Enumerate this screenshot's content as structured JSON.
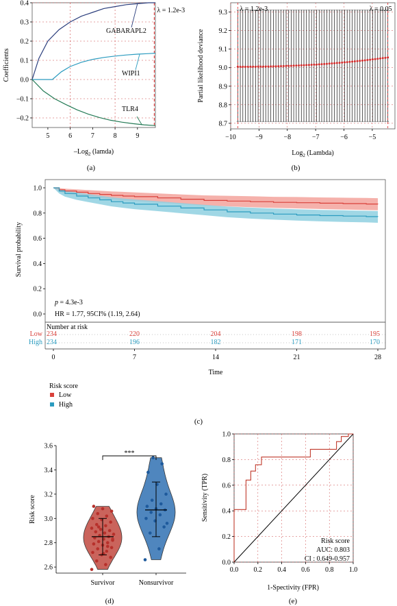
{
  "panels": {
    "a": "(a)",
    "b": "(b)",
    "c": "(c)",
    "d": "(d)",
    "e": "(e)"
  },
  "chart_data": [
    {
      "id": "a",
      "type": "line",
      "xlabel_main": "–Log",
      "xlabel_sub": "2",
      "xlabel_tail": " (lamda)",
      "ylabel": "Coefficients",
      "xlim": [
        4.3,
        9.8
      ],
      "ylim": [
        -0.25,
        0.4
      ],
      "xticks": [
        5,
        6,
        7,
        8,
        9
      ],
      "yticks": [
        -0.2,
        -0.1,
        0,
        0.1,
        0.2,
        0.3,
        0.4
      ],
      "ytick_labels": [
        "–0.2",
        "–0.1",
        "0.0",
        "0.1",
        "0.2",
        "0.3",
        "0.4"
      ],
      "lambda_line_x": 9.75,
      "lambda_label": "λ = 1.2e-3",
      "series": [
        {
          "name": "GABARAPL2",
          "color": "#2a3d7c",
          "x": [
            4.3,
            4.6,
            5.0,
            5.5,
            6.0,
            6.5,
            7.0,
            7.5,
            8.0,
            8.5,
            9.0,
            9.5,
            9.8
          ],
          "y": [
            0.0,
            0.11,
            0.2,
            0.26,
            0.3,
            0.33,
            0.35,
            0.37,
            0.38,
            0.39,
            0.395,
            0.4,
            0.4
          ]
        },
        {
          "name": "WIPI1",
          "color": "#2a9bbf",
          "x": [
            4.3,
            5.2,
            5.6,
            6.0,
            6.5,
            7.0,
            7.5,
            8.0,
            8.5,
            9.0,
            9.5,
            9.8
          ],
          "y": [
            0.0,
            0.0,
            0.04,
            0.068,
            0.09,
            0.105,
            0.115,
            0.122,
            0.128,
            0.132,
            0.135,
            0.137
          ]
        },
        {
          "name": "TLR4",
          "color": "#237a55",
          "x": [
            4.3,
            4.8,
            5.3,
            5.8,
            6.3,
            6.8,
            7.3,
            7.8,
            8.3,
            8.8,
            9.3,
            9.8
          ],
          "y": [
            0.0,
            -0.06,
            -0.1,
            -0.13,
            -0.158,
            -0.18,
            -0.198,
            -0.212,
            -0.222,
            -0.23,
            -0.236,
            -0.24
          ]
        }
      ]
    },
    {
      "id": "b",
      "type": "scatter",
      "xlabel_main": "Log",
      "xlabel_sub": "2",
      "xlabel_tail": " (Lambda)",
      "ylabel": "Partial likelihood deviance",
      "xlim": [
        -10,
        -4.2
      ],
      "ylim": [
        8.67,
        9.35
      ],
      "xticks": [
        -10,
        -9,
        -8,
        -7,
        -6,
        -5
      ],
      "xtick_labels": [
        "−10",
        "−9",
        "−8",
        "−7",
        "−6",
        "−5"
      ],
      "yticks": [
        8.7,
        8.8,
        8.9,
        9.0,
        9.1,
        9.2,
        9.3
      ],
      "ytick_labels": [
        "8.7",
        "8.8",
        "8.9",
        "9.0",
        "9.1",
        "9.2",
        "9.3"
      ],
      "lambda_min_x": -9.75,
      "lambda_1se_x": -4.45,
      "lambda_min_label": "λ = 1.2e-3",
      "lambda_1se_label": "λ = 0.05",
      "point_color": "#d32a2a",
      "x_start": -9.75,
      "x_end": -4.45,
      "n_points": 60,
      "y_start": 9.005,
      "y_end": 9.055,
      "err_low": 8.71,
      "err_high": 9.31
    },
    {
      "id": "c",
      "type": "line",
      "xlabel": "Time",
      "ylabel": "Survival probability",
      "xlim": [
        0,
        28
      ],
      "ylim": [
        0,
        1.0
      ],
      "xticks": [
        0,
        7,
        14,
        21,
        28
      ],
      "yticks": [
        0.0,
        0.2,
        0.4,
        0.6,
        0.8,
        1.0
      ],
      "ytick_labels": [
        "0.0",
        "0.2",
        "0.4",
        "0.6",
        "0.8",
        "1.0"
      ],
      "p_label": "p",
      "p_value": " = 4.3e-3",
      "hr_text": "HR = 1.77, 95CI% (1.19, 2.64)",
      "risk_table_title": "Number at risk",
      "legend_title": "Risk score",
      "series": [
        {
          "name": "Low",
          "color": "#d9413a",
          "band": "#f3a39c",
          "x": [
            0,
            0.5,
            1,
            2,
            3,
            4,
            5,
            6,
            7,
            9,
            11,
            13,
            15,
            17,
            19,
            21,
            23,
            25,
            27,
            28
          ],
          "y": [
            1.0,
            0.985,
            0.975,
            0.965,
            0.955,
            0.948,
            0.94,
            0.935,
            0.93,
            0.92,
            0.91,
            0.9,
            0.895,
            0.89,
            0.885,
            0.882,
            0.878,
            0.875,
            0.872,
            0.87
          ],
          "lo": [
            1.0,
            0.97,
            0.955,
            0.94,
            0.927,
            0.918,
            0.908,
            0.9,
            0.895,
            0.883,
            0.872,
            0.86,
            0.853,
            0.847,
            0.841,
            0.837,
            0.832,
            0.828,
            0.824,
            0.822
          ],
          "hi": [
            1.0,
            0.998,
            0.993,
            0.988,
            0.982,
            0.977,
            0.971,
            0.968,
            0.964,
            0.956,
            0.948,
            0.94,
            0.937,
            0.933,
            0.929,
            0.927,
            0.924,
            0.922,
            0.92,
            0.918
          ],
          "risk": [
            234,
            220,
            204,
            198,
            195
          ]
        },
        {
          "name": "High",
          "color": "#2a9bbf",
          "band": "#8fd0e0",
          "x": [
            0,
            0.5,
            1,
            2,
            3,
            4,
            5,
            6,
            7,
            9,
            11,
            13,
            15,
            17,
            19,
            21,
            23,
            25,
            27,
            28
          ],
          "y": [
            1.0,
            0.975,
            0.955,
            0.935,
            0.92,
            0.905,
            0.89,
            0.88,
            0.87,
            0.855,
            0.84,
            0.825,
            0.81,
            0.8,
            0.792,
            0.785,
            0.78,
            0.776,
            0.772,
            0.77
          ],
          "lo": [
            1.0,
            0.955,
            0.93,
            0.905,
            0.887,
            0.87,
            0.853,
            0.842,
            0.831,
            0.815,
            0.799,
            0.783,
            0.767,
            0.756,
            0.748,
            0.74,
            0.734,
            0.73,
            0.726,
            0.723
          ],
          "hi": [
            1.0,
            0.99,
            0.978,
            0.963,
            0.951,
            0.938,
            0.925,
            0.916,
            0.908,
            0.894,
            0.88,
            0.866,
            0.852,
            0.843,
            0.836,
            0.83,
            0.825,
            0.822,
            0.818,
            0.816
          ],
          "risk": [
            234,
            196,
            182,
            171,
            170
          ]
        }
      ]
    },
    {
      "id": "d",
      "type": "scatter",
      "ylabel": "Risk score",
      "ylim": [
        2.55,
        3.6
      ],
      "yticks": [
        2.6,
        2.8,
        3.0,
        3.2,
        3.4,
        3.6
      ],
      "ytick_labels": [
        "2.6",
        "2.8",
        "3.0",
        "3.2",
        "3.4",
        "3.6"
      ],
      "categories": [
        "Survivor",
        "Nonsurvivor"
      ],
      "significance": "***",
      "groups": [
        {
          "name": "Survivor",
          "fill": "#c5544b",
          "point": "#b7302b",
          "mean": 2.85,
          "sd_low": 2.7,
          "sd_high": 3.0,
          "points": [
            2.58,
            2.62,
            2.65,
            2.68,
            2.7,
            2.72,
            2.73,
            2.75,
            2.76,
            2.78,
            2.79,
            2.8,
            2.81,
            2.82,
            2.83,
            2.84,
            2.85,
            2.86,
            2.87,
            2.88,
            2.89,
            2.9,
            2.91,
            2.92,
            2.94,
            2.95,
            2.97,
            2.99,
            3.0,
            3.02,
            3.04,
            3.06,
            3.08,
            3.1,
            2.77,
            2.93,
            2.83,
            2.71
          ]
        },
        {
          "name": "Nonsurvivor",
          "fill": "#3d79b8",
          "point": "#1e5a9c",
          "mean": 3.07,
          "sd_low": 2.85,
          "sd_high": 3.3,
          "points": [
            2.66,
            2.75,
            2.88,
            2.93,
            2.98,
            3.0,
            3.03,
            3.05,
            3.07,
            3.08,
            3.1,
            3.12,
            3.15,
            3.2,
            3.28,
            3.38,
            3.45,
            3.5,
            2.96
          ]
        }
      ]
    },
    {
      "id": "e",
      "type": "line",
      "xlabel": "1-Spectivity (FPR)",
      "ylabel": "Sensitivity (TPR)",
      "xlim": [
        0,
        1
      ],
      "ylim": [
        0,
        1
      ],
      "xticks": [
        0,
        0.2,
        0.4,
        0.6,
        0.8,
        1.0
      ],
      "yticks": [
        0,
        0.2,
        0.4,
        0.6,
        0.8,
        1.0
      ],
      "tick_labels": [
        "0.0",
        "0.2",
        "0.4",
        "0.6",
        "0.8",
        "1.0"
      ],
      "roc_color": "#c0392b",
      "annot_title": "Risk score",
      "annot_auc": "AUC: 0.803",
      "annot_ci": "CI : 0.649-0.957",
      "roc": {
        "x": [
          0,
          0,
          0.1,
          0.1,
          0.14,
          0.14,
          0.18,
          0.18,
          0.23,
          0.23,
          0.64,
          0.64,
          0.86,
          0.86,
          0.9,
          0.9,
          0.96,
          0.96,
          1.0
        ],
        "y": [
          0,
          0.41,
          0.41,
          0.64,
          0.64,
          0.71,
          0.71,
          0.76,
          0.76,
          0.82,
          0.82,
          0.88,
          0.88,
          0.94,
          0.94,
          0.98,
          0.98,
          1.0,
          1.0
        ]
      }
    }
  ]
}
